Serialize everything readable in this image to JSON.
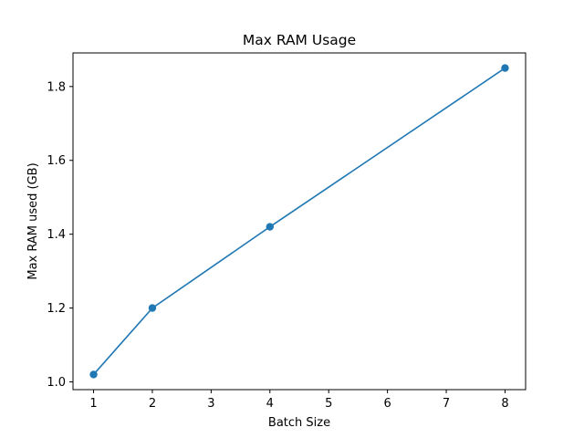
{
  "chart_data": {
    "type": "line",
    "title": "Max RAM Usage",
    "xlabel": "Batch Size",
    "ylabel": "Max RAM used (GB)",
    "x": [
      1,
      2,
      4,
      8
    ],
    "series": [
      {
        "values": [
          1.02,
          1.2,
          1.42,
          1.85
        ]
      }
    ],
    "xlim": [
      0.65,
      8.35
    ],
    "ylim": [
      0.979,
      1.891
    ],
    "xticks": [
      1,
      2,
      3,
      4,
      5,
      6,
      7,
      8
    ],
    "yticks": [
      1.0,
      1.2,
      1.4,
      1.6,
      1.8
    ],
    "xtick_labels": [
      "1",
      "2",
      "3",
      "4",
      "5",
      "6",
      "7",
      "8"
    ],
    "ytick_labels": [
      "1.0",
      "1.2",
      "1.4",
      "1.6",
      "1.8"
    ],
    "line_color": "#1f77b4",
    "markers": true,
    "grid": false,
    "legend": "none"
  }
}
